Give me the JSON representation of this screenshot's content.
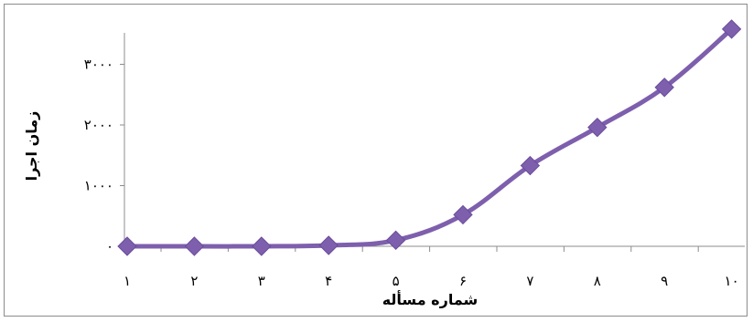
{
  "chart_data": {
    "type": "line",
    "x": [
      "١",
      "٢",
      "٣",
      "۴",
      "۵",
      "۶",
      "٧",
      "٨",
      "٩",
      "١٠"
    ],
    "series": [
      {
        "values": [
          0,
          0,
          0,
          15,
          100,
          520,
          1330,
          1960,
          2620,
          3580
        ]
      }
    ],
    "xlabel": "شماره مسأله",
    "ylabel": "زمان اجرا",
    "yticks": [
      0,
      1000,
      2000,
      3000
    ],
    "ytick_labels": [
      "٠",
      "١٠٠٠",
      "٢٠٠٠",
      "٣٠٠٠"
    ],
    "ylim": [
      0,
      3600
    ],
    "grid": false,
    "legend": "none",
    "smooth": true,
    "colors": {
      "line": "#7e5fad",
      "marker": "#7e5fad",
      "marker_outline": "#6a4c9c",
      "axis": "#8c8c8c"
    }
  }
}
